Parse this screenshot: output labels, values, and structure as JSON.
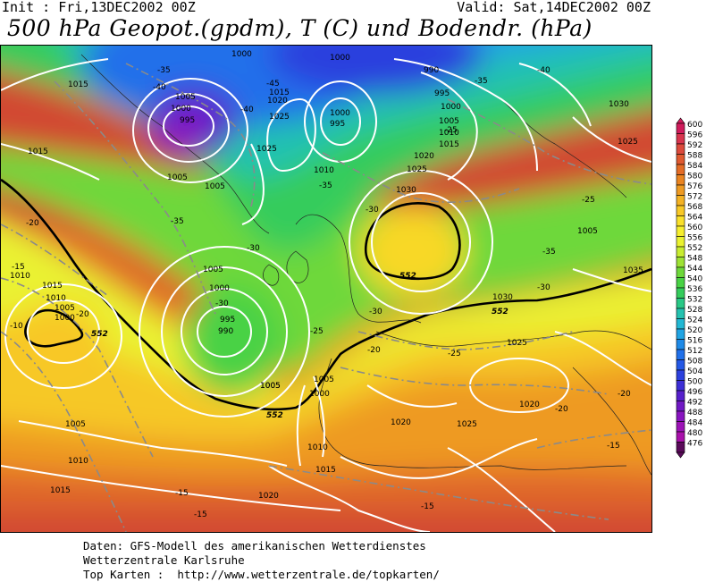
{
  "header": {
    "init": "Init : Fri,13DEC2002 00Z",
    "valid": "Valid: Sat,14DEC2002 00Z",
    "title": "500 hPa Geopot.(gpdm), T (C) und Bodendr. (hPa)"
  },
  "legend": {
    "values": [
      "600",
      "596",
      "592",
      "588",
      "584",
      "580",
      "576",
      "572",
      "568",
      "564",
      "560",
      "556",
      "552",
      "548",
      "544",
      "540",
      "536",
      "532",
      "528",
      "524",
      "520",
      "516",
      "512",
      "508",
      "504",
      "500",
      "496",
      "492",
      "488",
      "484",
      "480",
      "476"
    ],
    "colors": [
      "#d01c5c",
      "#d8344e",
      "#dc4a3c",
      "#e05a30",
      "#e46c26",
      "#ea8420",
      "#ee9a22",
      "#f4b224",
      "#f8c826",
      "#fae02a",
      "#f6ee2e",
      "#eaf230",
      "#c8ec30",
      "#9ee234",
      "#6ed83a",
      "#48d244",
      "#34cc5c",
      "#28c886",
      "#24c2b0",
      "#22b8d4",
      "#20a4e4",
      "#1e8ae8",
      "#2070ea",
      "#2458e6",
      "#2c40de",
      "#3c2ed6",
      "#5620cc",
      "#7018c4",
      "#8814c0",
      "#9c12b6",
      "#a810aa",
      "#5a0a5a"
    ]
  },
  "map": {
    "pressure_labels": [
      "1015",
      "1005",
      "1000",
      "995",
      "1005",
      "1015",
      "1020",
      "1025",
      "1000",
      "995",
      "1000",
      "1000",
      "990",
      "995",
      "1000",
      "1005",
      "1010",
      "1015",
      "1030",
      "1015",
      "1010",
      "1005",
      "1025",
      "1020",
      "1025",
      "1030",
      "1015",
      "1005",
      "1025",
      "1010",
      "1000",
      "1005",
      "1000",
      "995",
      "990",
      "1005",
      "1005",
      "1000",
      "1005",
      "1010",
      "1015",
      "1020",
      "1020",
      "1025",
      "1025",
      "1020",
      "1030",
      "1035",
      "1010",
      "1005",
      "1010",
      "1015",
      "1005"
    ],
    "temp_labels": [
      "-35",
      "-40",
      "-45",
      "-40",
      "-35",
      "-40",
      "-35",
      "-30",
      "-35",
      "-30",
      "-25",
      "-20",
      "-15",
      "-10",
      "-20",
      "-25",
      "-30",
      "-35",
      "-30",
      "-30",
      "-25",
      "-20",
      "-20",
      "-25",
      "-20",
      "-15",
      "-15",
      "-15",
      "-15"
    ],
    "contour_552_labels": [
      "552",
      "552",
      "552",
      "552"
    ],
    "legend_swatch_count": 32
  },
  "footer": {
    "line1": "Daten: GFS-Modell des amerikanischen Wetterdienstes",
    "line2": "Wetterzentrale Karlsruhe",
    "line3": "Top Karten :  http://www.wetterzentrale.de/topkarten/"
  }
}
